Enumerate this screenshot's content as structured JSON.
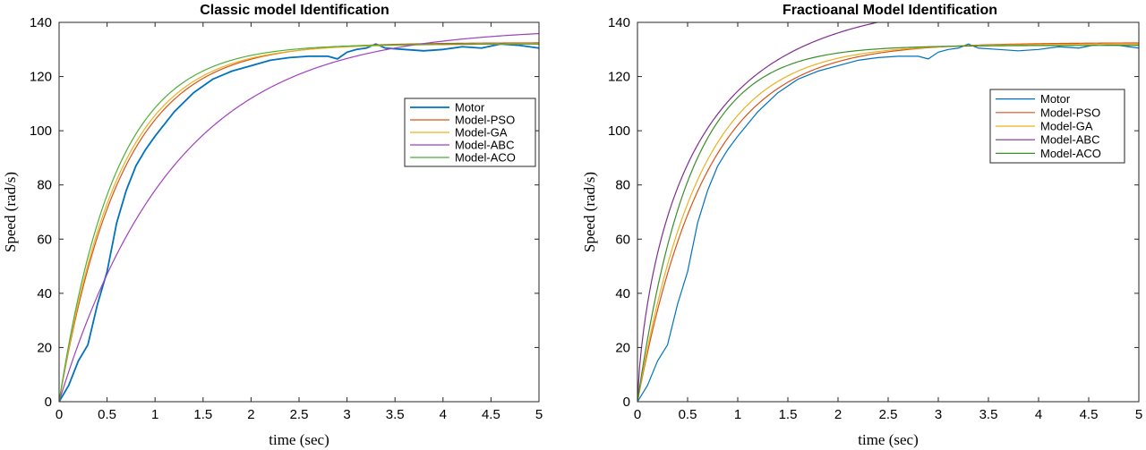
{
  "chart_data": [
    {
      "type": "line",
      "title": "Classic model Identification",
      "xlabel": "time (sec)",
      "ylabel": "Speed (rad/s)",
      "xlim": [
        0,
        5
      ],
      "ylim": [
        0,
        140
      ],
      "xticks": [
        0,
        0.5,
        1,
        1.5,
        2,
        2.5,
        3,
        3.5,
        4,
        4.5,
        5
      ],
      "xtick_labels": [
        "0",
        "0.5",
        "1",
        "1.5",
        "2",
        "2.5",
        "3",
        "3.5",
        "4",
        "4.5",
        "5"
      ],
      "yticks": [
        0,
        20,
        40,
        60,
        80,
        100,
        120,
        140
      ],
      "ytick_labels": [
        "0",
        "20",
        "40",
        "60",
        "80",
        "100",
        "120",
        "140"
      ],
      "legend_position": "top-right",
      "series": [
        {
          "name": "Motor",
          "color": "#0072bd",
          "width": 1.8,
          "x": [
            0,
            0.1,
            0.2,
            0.3,
            0.4,
            0.5,
            0.6,
            0.7,
            0.8,
            0.9,
            1.0,
            1.2,
            1.4,
            1.6,
            1.8,
            2.0,
            2.2,
            2.4,
            2.6,
            2.8,
            2.9,
            3.0,
            3.1,
            3.2,
            3.3,
            3.4,
            3.6,
            3.8,
            4.0,
            4.2,
            4.4,
            4.6,
            4.8,
            5.0
          ],
          "y": [
            0,
            6,
            15,
            21,
            36,
            48,
            66,
            78,
            87,
            93,
            98,
            107,
            114,
            119,
            122,
            124,
            126,
            127,
            127.5,
            127.5,
            126.5,
            129,
            130,
            130.5,
            132,
            130.5,
            130,
            129.5,
            130,
            131,
            130.5,
            132,
            131.5,
            130.5
          ]
        },
        {
          "name": "Model-PSO",
          "color": "#d95319",
          "width": 1.2,
          "model": {
            "type": "first-order",
            "K": 132.5,
            "tau": 0.65
          }
        },
        {
          "name": "Model-GA",
          "color": "#edb120",
          "width": 1.2,
          "model": {
            "type": "first-order",
            "K": 132,
            "tau": 0.62
          }
        },
        {
          "name": "Model-ABC",
          "color": "#a040c0",
          "width": 1.2,
          "model": {
            "type": "first-order",
            "K": 138,
            "tau": 1.2
          }
        },
        {
          "name": "Model-ACO",
          "color": "#4daf3a",
          "width": 1.2,
          "model": {
            "type": "first-order",
            "K": 132,
            "tau": 0.58
          }
        }
      ]
    },
    {
      "type": "line",
      "title": "Fractioanal Model Identification",
      "xlabel": "time (sec)",
      "ylabel": "Speed (rad/s)",
      "xlim": [
        0,
        5
      ],
      "ylim": [
        0,
        140
      ],
      "xticks": [
        0,
        0.5,
        1,
        1.5,
        2,
        2.5,
        3,
        3.5,
        4,
        4.5,
        5
      ],
      "xtick_labels": [
        "0",
        "0.5",
        "1",
        "1.5",
        "2",
        "2.5",
        "3",
        "3.5",
        "4",
        "4.5",
        "5"
      ],
      "yticks": [
        0,
        20,
        40,
        60,
        80,
        100,
        120,
        140
      ],
      "ytick_labels": [
        "0",
        "20",
        "40",
        "60",
        "80",
        "100",
        "120",
        "140"
      ],
      "legend_position": "top-right",
      "series": [
        {
          "name": "Motor",
          "color": "#0072bd",
          "width": 1.2,
          "x": [
            0,
            0.1,
            0.2,
            0.3,
            0.4,
            0.5,
            0.6,
            0.7,
            0.8,
            0.9,
            1.0,
            1.2,
            1.4,
            1.6,
            1.8,
            2.0,
            2.2,
            2.4,
            2.6,
            2.8,
            2.9,
            3.0,
            3.1,
            3.2,
            3.3,
            3.4,
            3.6,
            3.8,
            4.0,
            4.2,
            4.4,
            4.6,
            4.8,
            5.0
          ],
          "y": [
            0,
            6,
            15,
            21,
            36,
            48,
            66,
            78,
            87,
            93,
            98,
            107,
            114,
            119,
            122,
            124,
            126,
            127,
            127.5,
            127.5,
            126.5,
            129,
            130,
            130.5,
            132,
            130.5,
            130,
            129.5,
            130,
            131,
            130.5,
            132,
            131.5,
            130.5
          ]
        },
        {
          "name": "Model-PSO",
          "color": "#d95319",
          "width": 1.2,
          "model": {
            "type": "first-order",
            "K": 132.5,
            "tau": 0.68
          }
        },
        {
          "name": "Model-GA",
          "color": "#edb120",
          "width": 1.2,
          "model": {
            "type": "first-order",
            "K": 132,
            "tau": 0.62
          }
        },
        {
          "name": "Model-ABC",
          "color": "#7e2f8e",
          "width": 1.2,
          "model": {
            "type": "fractional",
            "K": 150,
            "tau": 0.6,
            "alpha": 0.72
          }
        },
        {
          "name": "Model-ACO",
          "color": "#3a8f2a",
          "width": 1.2,
          "model": {
            "type": "first-order",
            "K": 131.5,
            "tau": 0.52
          }
        }
      ]
    }
  ]
}
